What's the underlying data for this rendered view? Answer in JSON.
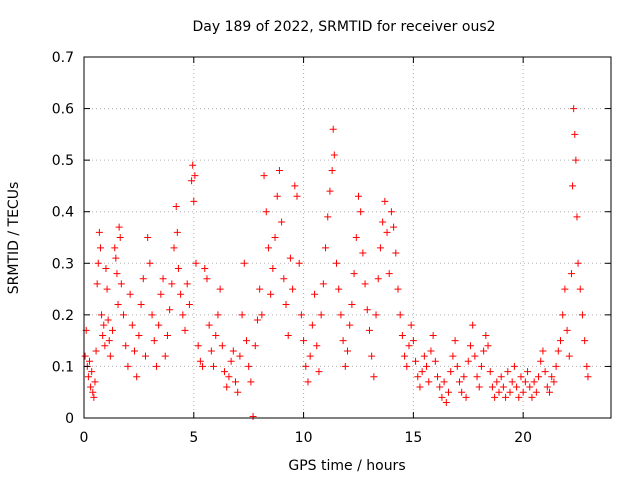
{
  "chart_data": {
    "type": "scatter",
    "title": "Day 189 of 2022, SRMTID for receiver ous2",
    "xlabel": "GPS time / hours",
    "ylabel": "SRMTID / TECUs",
    "xlim": [
      0,
      24
    ],
    "ylim": [
      0,
      0.7
    ],
    "xticks": [
      0,
      5,
      10,
      15,
      20
    ],
    "yticks": [
      0,
      0.1,
      0.2,
      0.3,
      0.4,
      0.5,
      0.6,
      0.7
    ],
    "xtick_labels": [
      "0",
      "5",
      "10",
      "15",
      "20"
    ],
    "ytick_labels": [
      "0",
      "0.1",
      "0.2",
      "0.3",
      "0.4",
      "0.5",
      "0.6",
      "0.7"
    ],
    "grid": true,
    "marker": "plus",
    "color": "#ff0000",
    "series": [
      {
        "name": "SRMTID",
        "points": [
          [
            0.05,
            0.12
          ],
          [
            0.1,
            0.17
          ],
          [
            0.15,
            0.1
          ],
          [
            0.2,
            0.08
          ],
          [
            0.25,
            0.11
          ],
          [
            0.3,
            0.06
          ],
          [
            0.35,
            0.09
          ],
          [
            0.4,
            0.05
          ],
          [
            0.45,
            0.04
          ],
          [
            0.5,
            0.07
          ],
          [
            0.55,
            0.13
          ],
          [
            0.6,
            0.26
          ],
          [
            0.65,
            0.3
          ],
          [
            0.7,
            0.36
          ],
          [
            0.75,
            0.33
          ],
          [
            0.8,
            0.2
          ],
          [
            0.85,
            0.16
          ],
          [
            0.9,
            0.18
          ],
          [
            0.95,
            0.14
          ],
          [
            1.0,
            0.29
          ],
          [
            1.05,
            0.25
          ],
          [
            1.1,
            0.19
          ],
          [
            1.15,
            0.15
          ],
          [
            1.2,
            0.12
          ],
          [
            1.3,
            0.17
          ],
          [
            1.4,
            0.33
          ],
          [
            1.45,
            0.31
          ],
          [
            1.5,
            0.28
          ],
          [
            1.55,
            0.22
          ],
          [
            1.6,
            0.37
          ],
          [
            1.65,
            0.35
          ],
          [
            1.7,
            0.26
          ],
          [
            1.8,
            0.2
          ],
          [
            1.9,
            0.14
          ],
          [
            2.0,
            0.1
          ],
          [
            2.1,
            0.24
          ],
          [
            2.2,
            0.18
          ],
          [
            2.3,
            0.13
          ],
          [
            2.4,
            0.08
          ],
          [
            2.5,
            0.16
          ],
          [
            2.6,
            0.22
          ],
          [
            2.7,
            0.27
          ],
          [
            2.8,
            0.12
          ],
          [
            2.9,
            0.35
          ],
          [
            3.0,
            0.3
          ],
          [
            3.1,
            0.2
          ],
          [
            3.2,
            0.15
          ],
          [
            3.3,
            0.1
          ],
          [
            3.4,
            0.18
          ],
          [
            3.5,
            0.24
          ],
          [
            3.6,
            0.27
          ],
          [
            3.7,
            0.12
          ],
          [
            3.8,
            0.16
          ],
          [
            3.9,
            0.21
          ],
          [
            4.0,
            0.26
          ],
          [
            4.1,
            0.33
          ],
          [
            4.2,
            0.41
          ],
          [
            4.25,
            0.36
          ],
          [
            4.3,
            0.29
          ],
          [
            4.4,
            0.24
          ],
          [
            4.5,
            0.2
          ],
          [
            4.6,
            0.17
          ],
          [
            4.7,
            0.26
          ],
          [
            4.8,
            0.22
          ],
          [
            4.9,
            0.46
          ],
          [
            4.95,
            0.49
          ],
          [
            5.0,
            0.42
          ],
          [
            5.05,
            0.47
          ],
          [
            5.1,
            0.3
          ],
          [
            5.2,
            0.14
          ],
          [
            5.3,
            0.11
          ],
          [
            5.4,
            0.1
          ],
          [
            5.5,
            0.29
          ],
          [
            5.6,
            0.27
          ],
          [
            5.7,
            0.18
          ],
          [
            5.8,
            0.13
          ],
          [
            5.9,
            0.1
          ],
          [
            6.0,
            0.16
          ],
          [
            6.1,
            0.2
          ],
          [
            6.2,
            0.25
          ],
          [
            6.3,
            0.14
          ],
          [
            6.4,
            0.09
          ],
          [
            6.5,
            0.06
          ],
          [
            6.6,
            0.08
          ],
          [
            6.7,
            0.11
          ],
          [
            6.8,
            0.13
          ],
          [
            6.9,
            0.07
          ],
          [
            7.0,
            0.05
          ],
          [
            7.1,
            0.12
          ],
          [
            7.2,
            0.2
          ],
          [
            7.3,
            0.3
          ],
          [
            7.4,
            0.15
          ],
          [
            7.5,
            0.1
          ],
          [
            7.6,
            0.07
          ],
          [
            7.7,
            0.003
          ],
          [
            7.8,
            0.14
          ],
          [
            7.9,
            0.19
          ],
          [
            8.0,
            0.25
          ],
          [
            8.1,
            0.2
          ],
          [
            8.2,
            0.47
          ],
          [
            8.3,
            0.4
          ],
          [
            8.4,
            0.33
          ],
          [
            8.5,
            0.24
          ],
          [
            8.6,
            0.29
          ],
          [
            8.7,
            0.35
          ],
          [
            8.8,
            0.43
          ],
          [
            8.9,
            0.48
          ],
          [
            9.0,
            0.38
          ],
          [
            9.1,
            0.27
          ],
          [
            9.2,
            0.22
          ],
          [
            9.3,
            0.16
          ],
          [
            9.4,
            0.31
          ],
          [
            9.5,
            0.25
          ],
          [
            9.6,
            0.45
          ],
          [
            9.7,
            0.43
          ],
          [
            9.8,
            0.3
          ],
          [
            9.9,
            0.2
          ],
          [
            10.0,
            0.15
          ],
          [
            10.1,
            0.1
          ],
          [
            10.2,
            0.07
          ],
          [
            10.3,
            0.12
          ],
          [
            10.4,
            0.18
          ],
          [
            10.5,
            0.24
          ],
          [
            10.6,
            0.14
          ],
          [
            10.7,
            0.09
          ],
          [
            10.8,
            0.2
          ],
          [
            10.9,
            0.26
          ],
          [
            11.0,
            0.33
          ],
          [
            11.1,
            0.39
          ],
          [
            11.2,
            0.44
          ],
          [
            11.3,
            0.48
          ],
          [
            11.35,
            0.56
          ],
          [
            11.4,
            0.51
          ],
          [
            11.5,
            0.3
          ],
          [
            11.6,
            0.25
          ],
          [
            11.7,
            0.2
          ],
          [
            11.8,
            0.15
          ],
          [
            11.9,
            0.1
          ],
          [
            12.0,
            0.13
          ],
          [
            12.1,
            0.18
          ],
          [
            12.2,
            0.22
          ],
          [
            12.3,
            0.28
          ],
          [
            12.4,
            0.35
          ],
          [
            12.5,
            0.43
          ],
          [
            12.6,
            0.4
          ],
          [
            12.7,
            0.32
          ],
          [
            12.8,
            0.26
          ],
          [
            12.9,
            0.21
          ],
          [
            13.0,
            0.17
          ],
          [
            13.1,
            0.12
          ],
          [
            13.2,
            0.08
          ],
          [
            13.3,
            0.2
          ],
          [
            13.4,
            0.27
          ],
          [
            13.5,
            0.33
          ],
          [
            13.6,
            0.38
          ],
          [
            13.7,
            0.42
          ],
          [
            13.8,
            0.36
          ],
          [
            13.9,
            0.28
          ],
          [
            14.0,
            0.4
          ],
          [
            14.1,
            0.37
          ],
          [
            14.2,
            0.32
          ],
          [
            14.3,
            0.25
          ],
          [
            14.4,
            0.2
          ],
          [
            14.5,
            0.16
          ],
          [
            14.6,
            0.12
          ],
          [
            14.7,
            0.1
          ],
          [
            14.8,
            0.14
          ],
          [
            14.9,
            0.18
          ],
          [
            15.0,
            0.15
          ],
          [
            15.1,
            0.11
          ],
          [
            15.2,
            0.08
          ],
          [
            15.3,
            0.06
          ],
          [
            15.4,
            0.09
          ],
          [
            15.5,
            0.12
          ],
          [
            15.6,
            0.1
          ],
          [
            15.7,
            0.07
          ],
          [
            15.8,
            0.13
          ],
          [
            15.9,
            0.16
          ],
          [
            16.0,
            0.11
          ],
          [
            16.1,
            0.08
          ],
          [
            16.2,
            0.06
          ],
          [
            16.3,
            0.04
          ],
          [
            16.4,
            0.07
          ],
          [
            16.5,
            0.03
          ],
          [
            16.6,
            0.05
          ],
          [
            16.7,
            0.09
          ],
          [
            16.8,
            0.12
          ],
          [
            16.9,
            0.15
          ],
          [
            17.0,
            0.1
          ],
          [
            17.1,
            0.07
          ],
          [
            17.2,
            0.05
          ],
          [
            17.3,
            0.08
          ],
          [
            17.4,
            0.04
          ],
          [
            17.5,
            0.11
          ],
          [
            17.6,
            0.14
          ],
          [
            17.7,
            0.18
          ],
          [
            17.8,
            0.12
          ],
          [
            17.9,
            0.08
          ],
          [
            18.0,
            0.06
          ],
          [
            18.1,
            0.1
          ],
          [
            18.2,
            0.13
          ],
          [
            18.3,
            0.16
          ],
          [
            18.4,
            0.14
          ],
          [
            18.5,
            0.09
          ],
          [
            18.6,
            0.06
          ],
          [
            18.7,
            0.04
          ],
          [
            18.8,
            0.07
          ],
          [
            18.9,
            0.05
          ],
          [
            19.0,
            0.08
          ],
          [
            19.1,
            0.06
          ],
          [
            19.2,
            0.04
          ],
          [
            19.3,
            0.09
          ],
          [
            19.4,
            0.05
          ],
          [
            19.5,
            0.07
          ],
          [
            19.6,
            0.1
          ],
          [
            19.7,
            0.06
          ],
          [
            19.8,
            0.04
          ],
          [
            19.9,
            0.08
          ],
          [
            20.0,
            0.05
          ],
          [
            20.1,
            0.07
          ],
          [
            20.2,
            0.09
          ],
          [
            20.3,
            0.06
          ],
          [
            20.4,
            0.04
          ],
          [
            20.5,
            0.07
          ],
          [
            20.6,
            0.05
          ],
          [
            20.7,
            0.08
          ],
          [
            20.8,
            0.11
          ],
          [
            20.9,
            0.13
          ],
          [
            21.0,
            0.09
          ],
          [
            21.1,
            0.06
          ],
          [
            21.2,
            0.05
          ],
          [
            21.3,
            0.08
          ],
          [
            21.4,
            0.07
          ],
          [
            21.5,
            0.1
          ],
          [
            21.6,
            0.13
          ],
          [
            21.7,
            0.15
          ],
          [
            21.8,
            0.2
          ],
          [
            21.9,
            0.25
          ],
          [
            22.0,
            0.17
          ],
          [
            22.1,
            0.12
          ],
          [
            22.2,
            0.28
          ],
          [
            22.25,
            0.45
          ],
          [
            22.3,
            0.6
          ],
          [
            22.35,
            0.55
          ],
          [
            22.4,
            0.5
          ],
          [
            22.45,
            0.39
          ],
          [
            22.5,
            0.3
          ],
          [
            22.6,
            0.25
          ],
          [
            22.7,
            0.2
          ],
          [
            22.8,
            0.15
          ],
          [
            22.9,
            0.1
          ],
          [
            22.95,
            0.08
          ]
        ]
      }
    ]
  }
}
